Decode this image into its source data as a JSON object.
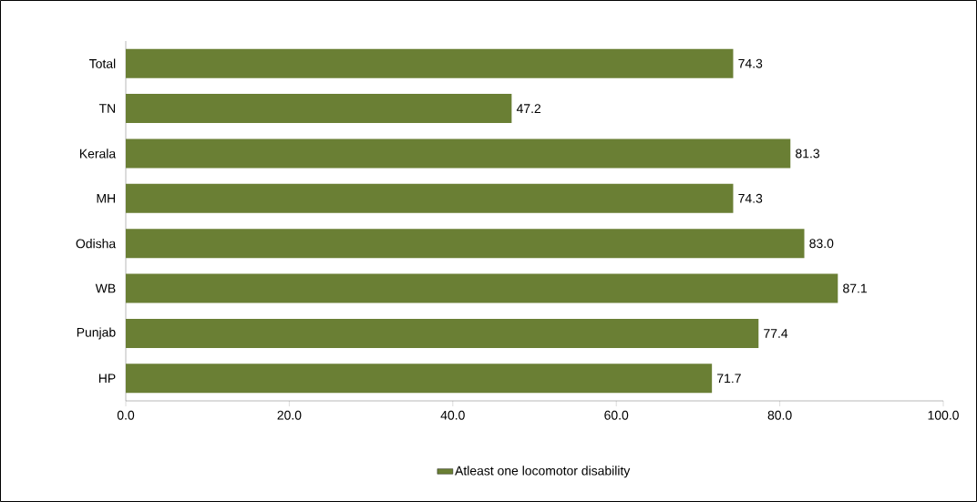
{
  "chart_data": {
    "type": "bar",
    "orientation": "horizontal",
    "categories": [
      "Total",
      "TN",
      "Kerala",
      "MH",
      "Odisha",
      "WB",
      "Punjab",
      "HP"
    ],
    "series": [
      {
        "name": "Atleast one locomotor disability",
        "color": "#6a7f34",
        "values": [
          74.3,
          47.2,
          81.3,
          74.3,
          83.0,
          87.1,
          77.4,
          71.7
        ],
        "value_labels": [
          "74.3",
          "47.2",
          "81.3",
          "74.3",
          "83.0",
          "87.1",
          "77.4",
          "71.7"
        ]
      }
    ],
    "xlim": [
      0,
      100
    ],
    "xticks": [
      {
        "value": 0,
        "label": "0.0"
      },
      {
        "value": 20,
        "label": "20.0"
      },
      {
        "value": 40,
        "label": "40.0"
      },
      {
        "value": 60,
        "label": "60.0"
      },
      {
        "value": 80,
        "label": "80.0"
      },
      {
        "value": 100,
        "label": "100.0"
      }
    ],
    "grid": false,
    "legend": "bottom"
  }
}
